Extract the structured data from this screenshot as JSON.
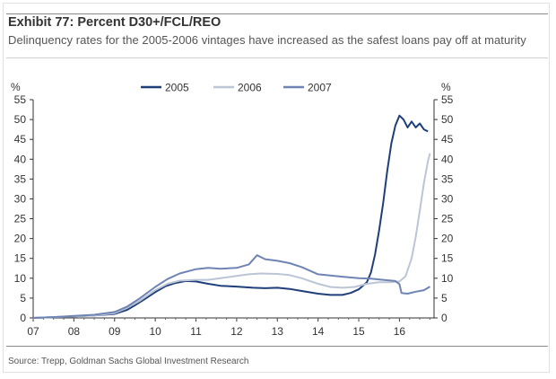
{
  "header": {
    "title": "Exhibit 77: Percent D30+/FCL/REO",
    "subtitle": "Delinquency rates for the 2005-2006 vintages have increased as the safest loans pay off at maturity"
  },
  "footer": {
    "source": "Source: Trepp, Goldman Sachs Global Investment Research"
  },
  "chart_data": {
    "type": "line",
    "title": "",
    "ylabel_left": "%",
    "ylabel_right": "%",
    "xlabel": "",
    "ylim": [
      0,
      55
    ],
    "y_ticks": [
      "0",
      "5",
      "10",
      "15",
      "20",
      "25",
      "30",
      "35",
      "40",
      "45",
      "50",
      "55"
    ],
    "x_ticks": [
      "07",
      "08",
      "09",
      "10",
      "11",
      "12",
      "13",
      "14",
      "15",
      "16"
    ],
    "xlim": [
      2007.0,
      2016.85
    ],
    "grid": false,
    "legend_position": "top-center",
    "series": [
      {
        "name": "2005",
        "color": "#1f3f7a",
        "points": [
          [
            2007.0,
            0.0
          ],
          [
            2007.5,
            0.2
          ],
          [
            2008.0,
            0.4
          ],
          [
            2008.5,
            0.6
          ],
          [
            2009.0,
            1.0
          ],
          [
            2009.3,
            2.0
          ],
          [
            2009.5,
            3.2
          ],
          [
            2009.75,
            4.8
          ],
          [
            2010.0,
            6.5
          ],
          [
            2010.25,
            8.0
          ],
          [
            2010.5,
            8.8
          ],
          [
            2010.75,
            9.3
          ],
          [
            2011.0,
            9.2
          ],
          [
            2011.3,
            8.6
          ],
          [
            2011.6,
            8.1
          ],
          [
            2012.0,
            7.9
          ],
          [
            2012.4,
            7.6
          ],
          [
            2012.7,
            7.5
          ],
          [
            2013.0,
            7.6
          ],
          [
            2013.3,
            7.3
          ],
          [
            2013.6,
            6.8
          ],
          [
            2014.0,
            6.1
          ],
          [
            2014.3,
            5.8
          ],
          [
            2014.6,
            5.8
          ],
          [
            2014.8,
            6.3
          ],
          [
            2015.0,
            7.2
          ],
          [
            2015.2,
            9.0
          ],
          [
            2015.3,
            11.5
          ],
          [
            2015.4,
            16.0
          ],
          [
            2015.5,
            22.0
          ],
          [
            2015.6,
            29.0
          ],
          [
            2015.7,
            37.0
          ],
          [
            2015.8,
            44.0
          ],
          [
            2015.9,
            48.5
          ],
          [
            2016.0,
            51.0
          ],
          [
            2016.1,
            50.0
          ],
          [
            2016.2,
            48.0
          ],
          [
            2016.3,
            49.5
          ],
          [
            2016.4,
            48.0
          ],
          [
            2016.5,
            49.0
          ],
          [
            2016.6,
            47.5
          ],
          [
            2016.7,
            47.0
          ]
        ]
      },
      {
        "name": "2006",
        "color": "#bcc5d6",
        "points": [
          [
            2007.0,
            0.0
          ],
          [
            2007.5,
            0.2
          ],
          [
            2008.0,
            0.4
          ],
          [
            2008.5,
            0.6
          ],
          [
            2009.0,
            1.2
          ],
          [
            2009.3,
            2.5
          ],
          [
            2009.6,
            4.2
          ],
          [
            2010.0,
            7.0
          ],
          [
            2010.3,
            8.6
          ],
          [
            2010.6,
            9.4
          ],
          [
            2011.0,
            9.6
          ],
          [
            2011.3,
            9.6
          ],
          [
            2011.6,
            10.0
          ],
          [
            2012.0,
            10.6
          ],
          [
            2012.3,
            11.0
          ],
          [
            2012.6,
            11.2
          ],
          [
            2013.0,
            11.1
          ],
          [
            2013.3,
            10.8
          ],
          [
            2013.6,
            10.0
          ],
          [
            2014.0,
            8.6
          ],
          [
            2014.3,
            7.8
          ],
          [
            2014.6,
            7.6
          ],
          [
            2014.9,
            7.8
          ],
          [
            2015.2,
            8.6
          ],
          [
            2015.5,
            9.0
          ],
          [
            2015.8,
            9.0
          ],
          [
            2016.0,
            9.2
          ],
          [
            2016.15,
            10.5
          ],
          [
            2016.3,
            15.0
          ],
          [
            2016.4,
            20.5
          ],
          [
            2016.5,
            27.0
          ],
          [
            2016.6,
            34.0
          ],
          [
            2016.7,
            39.5
          ],
          [
            2016.75,
            41.5
          ]
        ]
      },
      {
        "name": "2007",
        "color": "#6f84b5",
        "points": [
          [
            2007.0,
            0.0
          ],
          [
            2007.5,
            0.2
          ],
          [
            2008.0,
            0.5
          ],
          [
            2008.5,
            0.8
          ],
          [
            2009.0,
            1.5
          ],
          [
            2009.3,
            2.8
          ],
          [
            2009.6,
            4.8
          ],
          [
            2010.0,
            7.8
          ],
          [
            2010.3,
            9.8
          ],
          [
            2010.6,
            11.2
          ],
          [
            2011.0,
            12.3
          ],
          [
            2011.3,
            12.6
          ],
          [
            2011.6,
            12.4
          ],
          [
            2012.0,
            12.6
          ],
          [
            2012.3,
            13.5
          ],
          [
            2012.5,
            15.8
          ],
          [
            2012.7,
            14.8
          ],
          [
            2013.0,
            14.4
          ],
          [
            2013.3,
            13.8
          ],
          [
            2013.6,
            12.8
          ],
          [
            2014.0,
            11.0
          ],
          [
            2014.3,
            10.7
          ],
          [
            2014.6,
            10.4
          ],
          [
            2015.0,
            10.0
          ],
          [
            2015.3,
            9.9
          ],
          [
            2015.6,
            9.6
          ],
          [
            2015.9,
            9.3
          ],
          [
            2016.0,
            8.5
          ],
          [
            2016.05,
            6.3
          ],
          [
            2016.2,
            6.1
          ],
          [
            2016.4,
            6.6
          ],
          [
            2016.6,
            7.0
          ],
          [
            2016.75,
            7.9
          ]
        ]
      }
    ]
  }
}
